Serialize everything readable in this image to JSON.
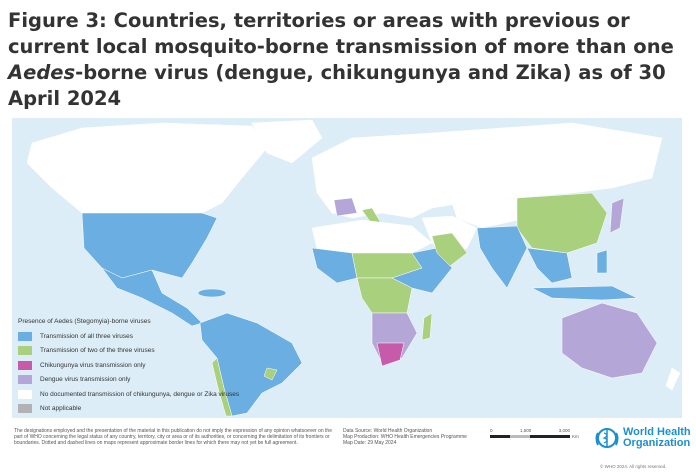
{
  "title": {
    "prefix": "Figure 3: Countries, territories or areas with previous or current local mosquito-borne transmission of more than one ",
    "italic": "Aedes",
    "suffix": "-borne virus (dengue, chikungunya and Zika) as of 30 April 2024"
  },
  "legend": {
    "title": "Presence of Aedes (Stegomyia)-borne viruses",
    "items": [
      {
        "label": "Transmission of all three viruses",
        "color": "#6aaee2"
      },
      {
        "label": "Transmission of two of the three viruses",
        "color": "#a9d07c"
      },
      {
        "label": "Chikungunya virus transmission only",
        "color": "#c75aa9"
      },
      {
        "label": "Dengue virus transmission only",
        "color": "#b4a7d8"
      },
      {
        "label": "No documented transmission of chikungunya, dengue or Zika viruses",
        "color": "#ffffff"
      },
      {
        "label": "Not applicable",
        "color": "#b2b2b2"
      }
    ]
  },
  "ocean_color": "#dcedf7",
  "disclaimer": "The designations employed and the presentation of the material in this publication do not imply the expression of any opinion whatsoever on the part of WHO concerning the legal status of any country, territory, city or area or of its authorities, or concerning the delimitation of its frontiers or boundaries. Dotted and dashed lines on maps represent approximate border lines for which there may not yet be full agreement.",
  "source": {
    "line1": "Data Source: World Health Organization",
    "line2": "Map Production: WHO Health Emergencies Programme",
    "line3": "Map Date: 29 May 2024"
  },
  "scale": {
    "ticks": [
      "0",
      "1,500",
      "3,000"
    ],
    "unit": "Km"
  },
  "logo": {
    "name_line1": "World Health",
    "name_line2": "Organization"
  },
  "copyright": "© WHO 2024. All rights reserved."
}
